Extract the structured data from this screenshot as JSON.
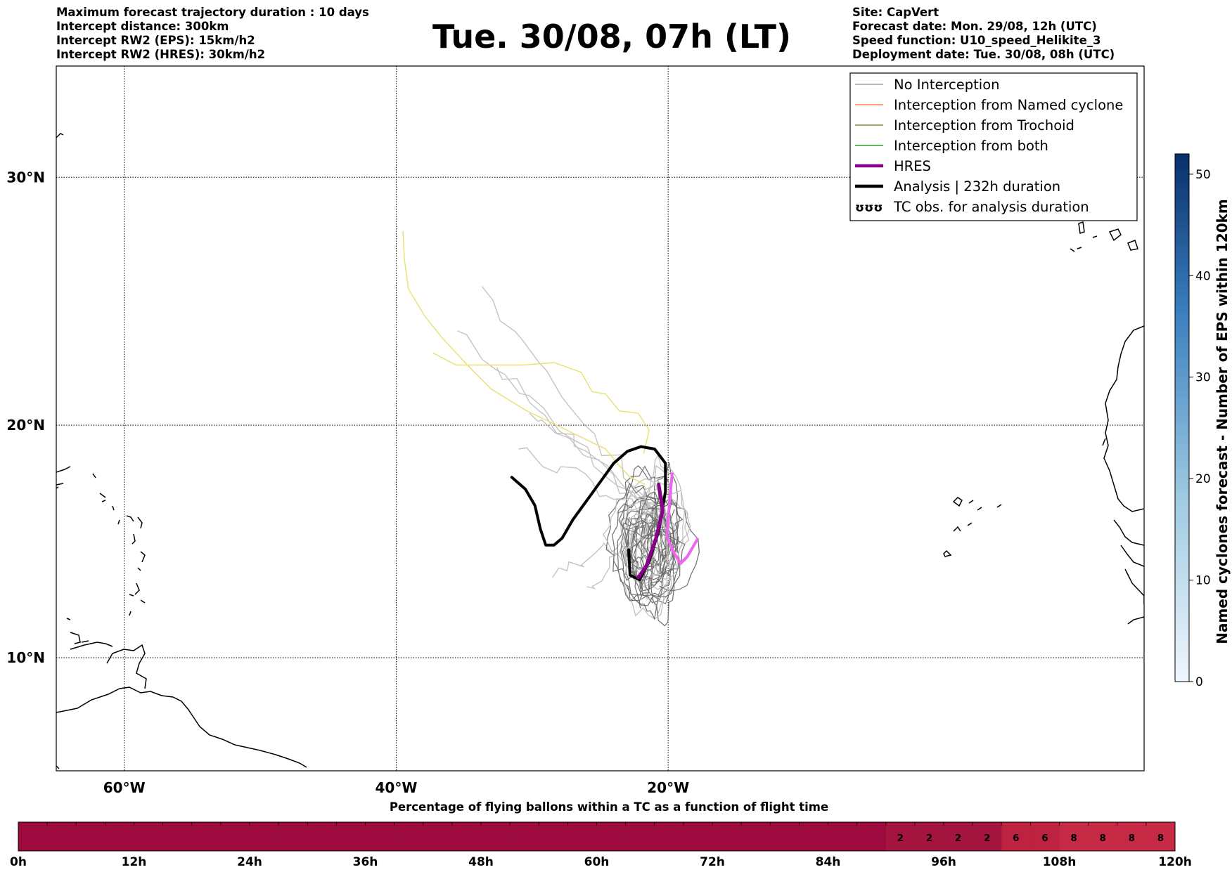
{
  "header": {
    "left_lines": [
      "Maximum forecast trajectory duration : 10 days",
      "Intercept distance: 300km",
      "Intercept RW2 (EPS):  15km/h2",
      "Intercept RW2 (HRES): 30km/h2"
    ],
    "title": "Tue. 30/08, 07h (LT)",
    "right_lines": [
      "Site: CapVert",
      "Forecast date: Mon. 29/08, 12h (UTC)",
      "Speed function: U10_speed_Helikite_3",
      "Deployment date: Tue. 30/08, 08h (UTC)"
    ]
  },
  "map": {
    "lon_range": [
      -65,
      15
    ],
    "lat_range": [
      5,
      34.2
    ],
    "lon_ticks": [
      {
        "value": -60,
        "label": "60°W"
      },
      {
        "value": -40,
        "label": "40°W"
      },
      {
        "value": -20,
        "label": "20°W"
      }
    ],
    "lat_ticks": [
      {
        "value": 30,
        "label": "30°N"
      },
      {
        "value": 20,
        "label": "20°N"
      },
      {
        "value": 10,
        "label": "10°N"
      }
    ],
    "grid": "dotted"
  },
  "legend": {
    "placement": "top-right",
    "items": [
      {
        "label": "No Interception",
        "color": "#9e9e9e",
        "style": "thin"
      },
      {
        "label": "Interception from Named cyclone",
        "color": "#ff7f50",
        "style": "thin"
      },
      {
        "label": "Interception from Trochoid",
        "color": "#8b8b3a",
        "style": "thin"
      },
      {
        "label": "Interception from both",
        "color": "#2ca02c",
        "style": "thin"
      },
      {
        "label": "HRES",
        "color": "#8b008b",
        "style": "thick"
      },
      {
        "label": "Analysis | 232h duration",
        "color": "#000000",
        "style": "thick"
      },
      {
        "label": "TC obs. for analysis duration",
        "color": "#000000",
        "style": "symbol",
        "symbol": "ʊʊʊ"
      }
    ]
  },
  "colorbar_right": {
    "label": "Named cyclones forecast - Number of EPS within 120km",
    "ticks": [
      "0",
      "10",
      "20",
      "30",
      "40",
      "50"
    ],
    "min": 0,
    "max": 52,
    "colors": [
      "#f0f6fd",
      "#08306b"
    ]
  },
  "timebar": {
    "title": "Percentage of flying ballons within a TC as a function of flight time",
    "tick_labels": [
      "0h",
      "12h",
      "24h",
      "36h",
      "48h",
      "60h",
      "72h",
      "84h",
      "96h",
      "108h",
      "120h"
    ],
    "hours_per_cell": 3,
    "cells": [
      0,
      0,
      0,
      0,
      0,
      0,
      0,
      0,
      0,
      0,
      0,
      0,
      0,
      0,
      0,
      0,
      0,
      0,
      0,
      0,
      0,
      0,
      0,
      0,
      0,
      0,
      0,
      0,
      0,
      0,
      2,
      2,
      2,
      2,
      6,
      6,
      8,
      8,
      8,
      8
    ],
    "colors": {
      "0": "#9d0a3e",
      "2": "#a3143f",
      "6": "#bd2341",
      "8": "#c62a45"
    }
  },
  "analysis_track": [
    [
      -31.5,
      17.8
    ],
    [
      -30.5,
      17.3
    ],
    [
      -29.8,
      16.6
    ],
    [
      -29.4,
      15.6
    ],
    [
      -29.0,
      14.9
    ],
    [
      -28.4,
      14.9
    ],
    [
      -27.8,
      15.2
    ],
    [
      -27.0,
      16.0
    ],
    [
      -26.0,
      16.8
    ],
    [
      -25.0,
      17.6
    ],
    [
      -24.0,
      18.4
    ],
    [
      -23.0,
      18.9
    ],
    [
      -22.0,
      19.1
    ],
    [
      -21.0,
      19.0
    ],
    [
      -20.2,
      18.4
    ],
    [
      -20.2,
      17.2
    ],
    [
      -20.7,
      15.5
    ],
    [
      -21.4,
      14.2
    ],
    [
      -22.1,
      13.4
    ],
    [
      -22.8,
      13.6
    ],
    [
      -22.9,
      14.7
    ]
  ],
  "hres_track": [
    [
      -20.7,
      17.5
    ],
    [
      -20.4,
      16.4
    ],
    [
      -20.9,
      15.2
    ],
    [
      -21.6,
      14.0
    ],
    [
      -22.2,
      13.5
    ]
  ],
  "hres_light_track": [
    [
      -19.7,
      18.0
    ],
    [
      -19.9,
      16.7
    ],
    [
      -20.1,
      15.3
    ],
    [
      -19.6,
      14.6
    ],
    [
      -19.1,
      14.1
    ],
    [
      -18.6,
      14.4
    ],
    [
      -17.8,
      15.2
    ]
  ],
  "yellow_tracks": [
    [
      [
        -39.5,
        27.9
      ],
      [
        -39.4,
        26.8
      ],
      [
        -39.1,
        25.6
      ],
      [
        -37.9,
        24.5
      ],
      [
        -36.6,
        23.6
      ],
      [
        -34.6,
        22.4
      ],
      [
        -33.0,
        21.5
      ],
      [
        -30.4,
        20.6
      ],
      [
        -28.2,
        20.0
      ],
      [
        -26.4,
        19.5
      ],
      [
        -24.6,
        19.0
      ],
      [
        -23.6,
        18.3
      ],
      [
        -22.8,
        17.8
      ],
      [
        -21.7,
        17.5
      ]
    ],
    [
      [
        -37.3,
        23.0
      ],
      [
        -35.6,
        22.5
      ],
      [
        -33.4,
        22.5
      ],
      [
        -30.7,
        22.5
      ],
      [
        -28.4,
        22.6
      ],
      [
        -26.4,
        22.2
      ],
      [
        -25.6,
        21.4
      ],
      [
        -24.6,
        21.3
      ],
      [
        -23.6,
        20.6
      ],
      [
        -22.2,
        20.5
      ],
      [
        -21.4,
        19.8
      ],
      [
        -21.8,
        18.8
      ]
    ]
  ]
}
